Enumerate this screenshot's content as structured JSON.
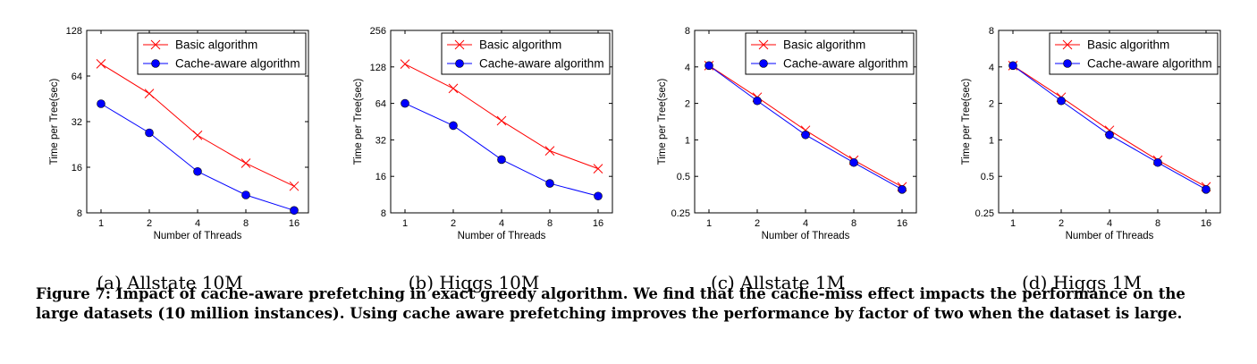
{
  "figure": {
    "caption_label": "Figure 7:",
    "caption_text": "Impact of cache-aware prefetching in exact greedy algorithm. We find that the cache-miss effect impacts the performance on the large datasets (10 million instances). Using cache aware prefetching improves the performance by factor of two when the dataset is large."
  },
  "chart_data": [
    {
      "type": "line",
      "subcaption": "(a) Allstate 10M",
      "xlabel": "Number of Threads",
      "ylabel": "Time per Tree(sec)",
      "x": [
        1,
        2,
        4,
        8,
        16
      ],
      "x_ticks": [
        "1",
        "2",
        "4",
        "8",
        "16"
      ],
      "y_ticks": [
        8,
        16,
        32,
        64,
        128
      ],
      "ylim": [
        8,
        128
      ],
      "y_scale": "log2",
      "legend_position": "top-right",
      "series": [
        {
          "name": "Basic algorithm",
          "color": "#ff0000",
          "marker": "x",
          "values": [
            77,
            49,
            26,
            17,
            12
          ]
        },
        {
          "name": "Cache-aware algorithm",
          "color": "#0000ff",
          "marker": "circle",
          "values": [
            42,
            27,
            15,
            10.5,
            8.3
          ]
        }
      ]
    },
    {
      "type": "line",
      "subcaption": "(b) Higgs 10M",
      "xlabel": "Number of Threads",
      "ylabel": "Time per Tree(sec)",
      "x": [
        1,
        2,
        4,
        8,
        16
      ],
      "x_ticks": [
        "1",
        "2",
        "4",
        "8",
        "16"
      ],
      "y_ticks": [
        8,
        16,
        32,
        64,
        128,
        256
      ],
      "ylim": [
        8,
        256
      ],
      "y_scale": "log2",
      "legend_position": "top-right",
      "series": [
        {
          "name": "Basic algorithm",
          "color": "#ff0000",
          "marker": "x",
          "values": [
            135,
            85,
            46,
            26,
            18.5
          ]
        },
        {
          "name": "Cache-aware algorithm",
          "color": "#0000ff",
          "marker": "circle",
          "values": [
            64,
            42,
            22,
            14,
            11
          ]
        }
      ]
    },
    {
      "type": "line",
      "subcaption": "(c) Allstate 1M",
      "xlabel": "Number of Threads",
      "ylabel": "Time per Tree(sec)",
      "x": [
        1,
        2,
        4,
        8,
        16
      ],
      "x_ticks": [
        "1",
        "2",
        "4",
        "8",
        "16"
      ],
      "y_ticks": [
        0.25,
        0.5,
        1,
        2,
        4,
        8
      ],
      "y_tick_labels": [
        "0.25",
        "0.5",
        "1",
        "2",
        "4",
        "8"
      ],
      "ylim": [
        0.25,
        8
      ],
      "y_scale": "log2",
      "legend_position": "top-right",
      "series": [
        {
          "name": "Basic algorithm",
          "color": "#ff0000",
          "marker": "x",
          "values": [
            4.1,
            2.25,
            1.2,
            0.68,
            0.41
          ]
        },
        {
          "name": "Cache-aware algorithm",
          "color": "#0000ff",
          "marker": "circle",
          "values": [
            4.1,
            2.1,
            1.1,
            0.65,
            0.39
          ]
        }
      ]
    },
    {
      "type": "line",
      "subcaption": "(d) Higgs 1M",
      "xlabel": "Number of Threads",
      "ylabel": "Time per Tree(sec)",
      "x": [
        1,
        2,
        4,
        8,
        16
      ],
      "x_ticks": [
        "1",
        "2",
        "4",
        "8",
        "16"
      ],
      "y_ticks": [
        0.25,
        0.5,
        1,
        2,
        4,
        8
      ],
      "y_tick_labels": [
        "0.25",
        "0.5",
        "1",
        "2",
        "4",
        "8"
      ],
      "ylim": [
        0.25,
        8
      ],
      "y_scale": "log2",
      "legend_position": "top-right",
      "series": [
        {
          "name": "Basic algorithm",
          "color": "#ff0000",
          "marker": "x",
          "values": [
            4.1,
            2.25,
            1.2,
            0.68,
            0.41
          ]
        },
        {
          "name": "Cache-aware algorithm",
          "color": "#0000ff",
          "marker": "circle",
          "values": [
            4.1,
            2.1,
            1.1,
            0.65,
            0.39
          ]
        }
      ]
    }
  ]
}
